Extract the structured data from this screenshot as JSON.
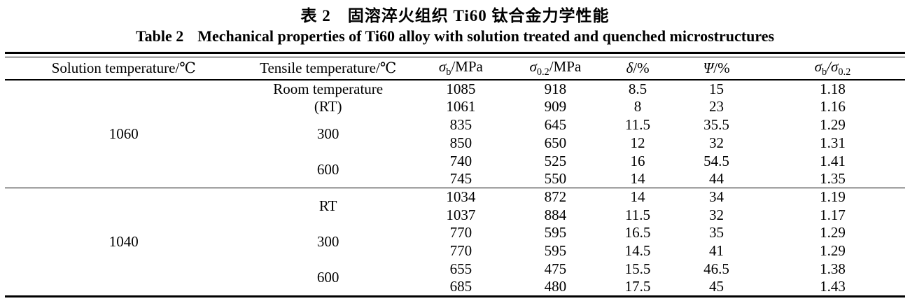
{
  "colors": {
    "text": "#000000",
    "background": "#ffffff"
  },
  "page": {
    "title_cn": "表 2　固溶淬火组织 Ti60 钛合金力学性能",
    "title_en_label": "Table 2",
    "title_en_text": "Mechanical properties of Ti60 alloy with solution treated and quenched microstructures"
  },
  "table": {
    "headers": {
      "solution": "Solution temperature/℃",
      "tensile": "Tensile temperature/℃",
      "sigma_b": {
        "sym": "σ",
        "sub": "b",
        "unit": "/MPa"
      },
      "sigma_02": {
        "sym": "σ",
        "sub": "0.2",
        "unit": "/MPa"
      },
      "delta": {
        "sym": "δ",
        "unit": "/%"
      },
      "psi": {
        "sym": "Ψ",
        "unit": "/%"
      },
      "ratio": {
        "sym1": "σ",
        "sub1": "b",
        "mid": "/σ",
        "sub2": "0.2"
      }
    },
    "groups": [
      {
        "solution_temp": "1060",
        "subgroups": [
          {
            "tensile": [
              "Room temperature",
              "(RT)"
            ],
            "rows": [
              [
                "1085",
                "918",
                "8.5",
                "15",
                "1.18"
              ],
              [
                "1061",
                "909",
                "8",
                "23",
                "1.16"
              ]
            ]
          },
          {
            "tensile": [
              "300"
            ],
            "rows": [
              [
                "835",
                "645",
                "11.5",
                "35.5",
                "1.29"
              ],
              [
                "850",
                "650",
                "12",
                "32",
                "1.31"
              ]
            ]
          },
          {
            "tensile": [
              "600"
            ],
            "rows": [
              [
                "740",
                "525",
                "16",
                "54.5",
                "1.41"
              ],
              [
                "745",
                "550",
                "14",
                "44",
                "1.35"
              ]
            ]
          }
        ]
      },
      {
        "solution_temp": "1040",
        "subgroups": [
          {
            "tensile": [
              "RT"
            ],
            "rows": [
              [
                "1034",
                "872",
                "14",
                "34",
                "1.19"
              ],
              [
                "1037",
                "884",
                "11.5",
                "32",
                "1.17"
              ]
            ]
          },
          {
            "tensile": [
              "300"
            ],
            "rows": [
              [
                "770",
                "595",
                "16.5",
                "35",
                "1.29"
              ],
              [
                "770",
                "595",
                "14.5",
                "41",
                "1.29"
              ]
            ]
          },
          {
            "tensile": [
              "600"
            ],
            "rows": [
              [
                "655",
                "475",
                "15.5",
                "46.5",
                "1.38"
              ],
              [
                "685",
                "480",
                "17.5",
                "45",
                "1.43"
              ]
            ]
          }
        ]
      }
    ]
  }
}
